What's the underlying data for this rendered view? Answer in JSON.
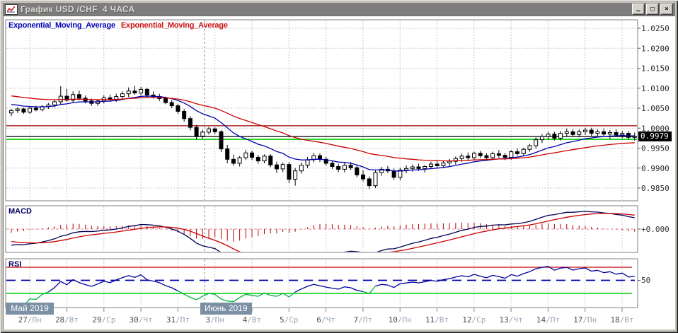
{
  "window": {
    "title": "График USD /CHF  4 ЧАСА",
    "controls": {
      "minimize": "—",
      "maximize": "□",
      "close": "×"
    }
  },
  "legend": [
    {
      "label": "Exponential_Moving_Average",
      "color": "#0000bb"
    },
    {
      "label": "Exponential_Moving_Average",
      "color": "#cc1111"
    }
  ],
  "price_axis": {
    "labels": [
      "1.0250",
      "1.0200",
      "1.0150",
      "1.0100",
      "1.0050",
      "1.0000",
      "0.9950",
      "0.9900",
      "0.9850"
    ],
    "current_price": "0.9979"
  },
  "time_axis": {
    "month_boxes": [
      {
        "label": "Май 2019"
      },
      {
        "label": "Июнь 2019"
      }
    ]
  },
  "panels": {
    "macd": {
      "label": "MACD",
      "axis_label": "+0.000"
    },
    "rsi": {
      "label": "RSI",
      "axis_label": "50"
    }
  },
  "chart_data": {
    "type": "candlestick",
    "title": "USD/CHF 4 HOUR chart with EMA, MACD, RSI",
    "symbol": "USD/CHF",
    "timeframe": "4H",
    "ylim": [
      0.983,
      1.027
    ],
    "gridline_prices": [
      1.025,
      1.02,
      1.015,
      1.01,
      1.005,
      1.0,
      0.995,
      0.99,
      0.985
    ],
    "horizontal_lines": [
      {
        "price": 1.0006,
        "color": "#990000",
        "width": 1.2
      },
      {
        "price": 0.9979,
        "color": "#000000",
        "width": 1.2
      },
      {
        "price": 0.9972,
        "color": "#00cc00",
        "width": 1.6
      }
    ],
    "current_price": 0.9979,
    "dates": [
      "27/Пн",
      "28/Вт",
      "29/Ср",
      "30/Чт",
      "31/Пт",
      "3/Пн",
      "4/Вт",
      "5/Ср",
      "6/Чт",
      "7/Пт",
      "10/Пн",
      "11/Вт",
      "12/Ср",
      "13/Чт",
      "14/Пт",
      "17/Пн",
      "18/Вт"
    ],
    "candles_per_day": 6,
    "warmup_closes": [
      1.0108,
      1.0102,
      1.0096,
      1.009,
      1.0084,
      1.0076,
      1.007,
      1.0062,
      1.0056,
      1.005,
      1.0046,
      1.0042,
      1.004,
      1.0039
    ],
    "candles_ohlc": [
      [
        1.0038,
        1.0048,
        1.003,
        1.0044
      ],
      [
        1.0044,
        1.0052,
        1.0038,
        1.0048
      ],
      [
        1.0048,
        1.0051,
        1.0036,
        1.004
      ],
      [
        1.004,
        1.0054,
        1.0036,
        1.005
      ],
      [
        1.005,
        1.0056,
        1.0042,
        1.0046
      ],
      [
        1.0046,
        1.0058,
        1.0042,
        1.0054
      ],
      [
        1.0054,
        1.0063,
        1.0048,
        1.0058
      ],
      [
        1.0058,
        1.0072,
        1.0052,
        1.0066
      ],
      [
        1.0066,
        1.0105,
        1.006,
        1.008
      ],
      [
        1.008,
        1.0098,
        1.0066,
        1.007
      ],
      [
        1.007,
        1.0092,
        1.0064,
        1.0084
      ],
      [
        1.0084,
        1.0094,
        1.007,
        1.0075
      ],
      [
        1.0075,
        1.0082,
        1.0062,
        1.0068
      ],
      [
        1.0068,
        1.0074,
        1.0056,
        1.0062
      ],
      [
        1.0062,
        1.0072,
        1.0056,
        1.0068
      ],
      [
        1.0068,
        1.0082,
        1.0062,
        1.0076
      ],
      [
        1.0076,
        1.0084,
        1.0066,
        1.0071
      ],
      [
        1.0071,
        1.0086,
        1.0066,
        1.0079
      ],
      [
        1.0079,
        1.0092,
        1.0072,
        1.0086
      ],
      [
        1.0086,
        1.0102,
        1.0078,
        1.0093
      ],
      [
        1.0093,
        1.0106,
        1.0084,
        1.0088
      ],
      [
        1.0088,
        1.0103,
        1.0082,
        1.0097
      ],
      [
        1.0097,
        1.0101,
        1.0076,
        1.0083
      ],
      [
        1.0083,
        1.0092,
        1.0074,
        1.0079
      ],
      [
        1.0079,
        1.0086,
        1.0068,
        1.0074
      ],
      [
        1.0074,
        1.0079,
        1.006,
        1.0064
      ],
      [
        1.0064,
        1.0071,
        1.005,
        1.0056
      ],
      [
        1.0056,
        1.0061,
        1.0036,
        1.0042
      ],
      [
        1.0042,
        1.0048,
        1.0016,
        1.0024
      ],
      [
        1.0024,
        1.003,
        0.9994,
        1.0002
      ],
      [
        1.0002,
        1.0008,
        0.9972,
        0.998
      ],
      [
        0.998,
        0.9996,
        0.9974,
        0.999
      ],
      [
        0.999,
        1.0003,
        0.9984,
        0.9998
      ],
      [
        0.9998,
        1.0002,
        0.9985,
        0.9991
      ],
      [
        0.9991,
        0.9995,
        0.994,
        0.9948
      ],
      [
        0.9948,
        0.9958,
        0.9912,
        0.9922
      ],
      [
        0.9922,
        0.9934,
        0.9906,
        0.9912
      ],
      [
        0.9912,
        0.993,
        0.9904,
        0.9926
      ],
      [
        0.9926,
        0.9946,
        0.992,
        0.9938
      ],
      [
        0.9938,
        0.9944,
        0.992,
        0.9927
      ],
      [
        0.9927,
        0.9933,
        0.9911,
        0.9918
      ],
      [
        0.9918,
        0.9934,
        0.9912,
        0.993
      ],
      [
        0.993,
        0.9935,
        0.9902,
        0.9908
      ],
      [
        0.9908,
        0.9916,
        0.9888,
        0.9898
      ],
      [
        0.9898,
        0.9914,
        0.989,
        0.9909
      ],
      [
        0.9909,
        0.9915,
        0.9862,
        0.9872
      ],
      [
        0.9872,
        0.99,
        0.9856,
        0.9893
      ],
      [
        0.9893,
        0.9914,
        0.9886,
        0.9907
      ],
      [
        0.9907,
        0.9928,
        0.99,
        0.9921
      ],
      [
        0.9921,
        0.9938,
        0.9914,
        0.9931
      ],
      [
        0.9931,
        0.9937,
        0.9915,
        0.9922
      ],
      [
        0.9922,
        0.9928,
        0.9906,
        0.9912
      ],
      [
        0.9912,
        0.9918,
        0.9898,
        0.9904
      ],
      [
        0.9904,
        0.9911,
        0.989,
        0.9897
      ],
      [
        0.9897,
        0.9913,
        0.9889,
        0.9907
      ],
      [
        0.9907,
        0.9915,
        0.9895,
        0.9901
      ],
      [
        0.9901,
        0.9907,
        0.9877,
        0.9883
      ],
      [
        0.9883,
        0.9895,
        0.9867,
        0.9873
      ],
      [
        0.9873,
        0.9879,
        0.9848,
        0.9856
      ],
      [
        0.9856,
        0.9895,
        0.985,
        0.9889
      ],
      [
        0.9889,
        0.9903,
        0.9881,
        0.9897
      ],
      [
        0.9897,
        0.9905,
        0.9887,
        0.9893
      ],
      [
        0.9893,
        0.9899,
        0.9871,
        0.9877
      ],
      [
        0.9877,
        0.9901,
        0.9869,
        0.9895
      ],
      [
        0.9895,
        0.9907,
        0.9887,
        0.9899
      ],
      [
        0.9899,
        0.9909,
        0.9891,
        0.9903
      ],
      [
        0.9903,
        0.9911,
        0.9893,
        0.9899
      ],
      [
        0.9899,
        0.9907,
        0.9889,
        0.9904
      ],
      [
        0.9904,
        0.9916,
        0.9898,
        0.991
      ],
      [
        0.991,
        0.9917,
        0.99,
        0.9906
      ],
      [
        0.9906,
        0.9918,
        0.99,
        0.9913
      ],
      [
        0.9913,
        0.9923,
        0.9905,
        0.9917
      ],
      [
        0.9917,
        0.9929,
        0.9909,
        0.9924
      ],
      [
        0.9924,
        0.9936,
        0.9916,
        0.993
      ],
      [
        0.993,
        0.9939,
        0.992,
        0.9926
      ],
      [
        0.9926,
        0.9941,
        0.992,
        0.9937
      ],
      [
        0.9937,
        0.9943,
        0.9925,
        0.9931
      ],
      [
        0.9931,
        0.9937,
        0.9919,
        0.9926
      ],
      [
        0.9926,
        0.9941,
        0.992,
        0.9936
      ],
      [
        0.9936,
        0.9945,
        0.9926,
        0.9932
      ],
      [
        0.9932,
        0.9938,
        0.992,
        0.9927
      ],
      [
        0.9927,
        0.9945,
        0.9921,
        0.9941
      ],
      [
        0.9941,
        0.9949,
        0.9931,
        0.9936
      ],
      [
        0.9936,
        0.9951,
        0.993,
        0.9947
      ],
      [
        0.9947,
        0.9961,
        0.9941,
        0.9956
      ],
      [
        0.9956,
        0.9977,
        0.9949,
        0.9971
      ],
      [
        0.9971,
        0.9985,
        0.9963,
        0.9979
      ],
      [
        0.9979,
        0.9991,
        0.9971,
        0.9985
      ],
      [
        0.9985,
        0.9991,
        0.9969,
        0.9975
      ],
      [
        0.9975,
        0.9993,
        0.9969,
        0.9987
      ],
      [
        0.9987,
        0.9999,
        0.9979,
        0.9991
      ],
      [
        0.9991,
        0.9997,
        0.9979,
        0.9984
      ],
      [
        0.9984,
        0.9997,
        0.9977,
        0.9991
      ],
      [
        0.9991,
        1.0001,
        0.9983,
        0.9995
      ],
      [
        0.9995,
        1.0001,
        0.9981,
        0.9987
      ],
      [
        0.9987,
        0.9997,
        0.9979,
        0.9991
      ],
      [
        0.9991,
        0.9999,
        0.9981,
        0.9985
      ],
      [
        0.9985,
        0.9995,
        0.9973,
        0.9989
      ],
      [
        0.9989,
        0.9997,
        0.9979,
        0.9983
      ],
      [
        0.9983,
        0.9993,
        0.9975,
        0.9987
      ],
      [
        0.9987,
        0.9993,
        0.9971,
        0.9977
      ],
      [
        0.9977,
        0.9989,
        0.9969,
        0.9979
      ]
    ],
    "indicators": {
      "ema_fast": {
        "period": 13,
        "color": "#0000b0"
      },
      "ema_slow": {
        "period": 34,
        "color": "#cc0000"
      },
      "macd": {
        "fast": 12,
        "slow": 26,
        "signal": 9,
        "line_color": "#000055",
        "signal_color": "#cc0000",
        "hist_color": "#bb0000",
        "zero_line_color": "#dd8899",
        "zero_label": "+0.000"
      },
      "rsi": {
        "period": 14,
        "color": "#0000a0",
        "oversold_color": "#00b040",
        "levels": {
          "overbought": 70,
          "middle": 50,
          "oversold": 30
        },
        "overbought_color": "#cc0000",
        "middle_color": "#0000aa",
        "oversold_line_color": "#00cc00"
      }
    }
  }
}
